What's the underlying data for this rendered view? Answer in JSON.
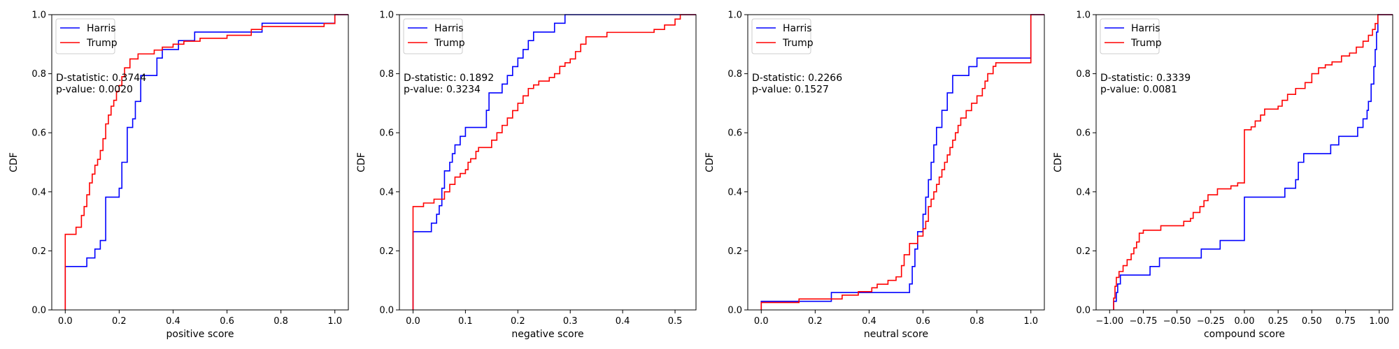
{
  "chart_data": [
    {
      "type": "line",
      "xlabel": "positive score",
      "ylabel": "CDF",
      "xlim": [
        -0.05,
        1.05
      ],
      "ylim": [
        0,
        1
      ],
      "xticks": [
        0.0,
        0.2,
        0.4,
        0.6,
        0.8,
        1.0
      ],
      "xtick_labels": [
        "0.0",
        "0.2",
        "0.4",
        "0.6",
        "0.8",
        "1.0"
      ],
      "yticks": [
        0.0,
        0.2,
        0.4,
        0.6,
        0.8,
        1.0
      ],
      "ytick_labels": [
        "0.0",
        "0.2",
        "0.4",
        "0.6",
        "0.8",
        "1.0"
      ],
      "legend": "top-left",
      "annotation": {
        "lines": [
          "D-statistic: 0.3744",
          "p-value: 0.0020"
        ]
      },
      "series": [
        {
          "name": "Harris",
          "color": "#0000ff",
          "points": [
            [
              0.0,
              0.147
            ],
            [
              0.08,
              0.176
            ],
            [
              0.11,
              0.206
            ],
            [
              0.13,
              0.235
            ],
            [
              0.15,
              0.382
            ],
            [
              0.2,
              0.412
            ],
            [
              0.21,
              0.5
            ],
            [
              0.23,
              0.618
            ],
            [
              0.25,
              0.647
            ],
            [
              0.26,
              0.706
            ],
            [
              0.28,
              0.794
            ],
            [
              0.34,
              0.853
            ],
            [
              0.36,
              0.882
            ],
            [
              0.42,
              0.912
            ],
            [
              0.48,
              0.941
            ],
            [
              0.73,
              0.971
            ],
            [
              1.0,
              1.0
            ]
          ]
        },
        {
          "name": "Trump",
          "color": "#ff0000",
          "points": [
            [
              0.0,
              0.256
            ],
            [
              0.04,
              0.28
            ],
            [
              0.06,
              0.32
            ],
            [
              0.07,
              0.35
            ],
            [
              0.08,
              0.39
            ],
            [
              0.09,
              0.43
            ],
            [
              0.1,
              0.46
            ],
            [
              0.11,
              0.49
            ],
            [
              0.12,
              0.51
            ],
            [
              0.13,
              0.54
            ],
            [
              0.14,
              0.58
            ],
            [
              0.15,
              0.63
            ],
            [
              0.16,
              0.66
            ],
            [
              0.17,
              0.69
            ],
            [
              0.18,
              0.71
            ],
            [
              0.19,
              0.74
            ],
            [
              0.2,
              0.76
            ],
            [
              0.21,
              0.79
            ],
            [
              0.22,
              0.82
            ],
            [
              0.24,
              0.85
            ],
            [
              0.27,
              0.867
            ],
            [
              0.33,
              0.88
            ],
            [
              0.36,
              0.89
            ],
            [
              0.4,
              0.9
            ],
            [
              0.44,
              0.91
            ],
            [
              0.5,
              0.92
            ],
            [
              0.6,
              0.93
            ],
            [
              0.69,
              0.95
            ],
            [
              0.73,
              0.96
            ],
            [
              0.96,
              0.97
            ],
            [
              1.0,
              1.0
            ]
          ]
        }
      ]
    },
    {
      "type": "line",
      "xlabel": "negative score",
      "ylabel": "CDF",
      "xlim": [
        -0.026,
        0.54
      ],
      "ylim": [
        0,
        1
      ],
      "xticks": [
        0.0,
        0.1,
        0.2,
        0.3,
        0.4,
        0.5
      ],
      "xtick_labels": [
        "0.0",
        "0.1",
        "0.2",
        "0.3",
        "0.4",
        "0.5"
      ],
      "yticks": [
        0.0,
        0.2,
        0.4,
        0.6,
        0.8,
        1.0
      ],
      "ytick_labels": [
        "0.0",
        "0.2",
        "0.4",
        "0.6",
        "0.8",
        "1.0"
      ],
      "legend": "top-left",
      "annotation": {
        "lines": [
          "D-statistic: 0.1892",
          "p-value: 0.3234"
        ]
      },
      "series": [
        {
          "name": "Harris",
          "color": "#0000ff",
          "points": [
            [
              0.0,
              0.265
            ],
            [
              0.035,
              0.294
            ],
            [
              0.045,
              0.324
            ],
            [
              0.05,
              0.353
            ],
            [
              0.055,
              0.412
            ],
            [
              0.06,
              0.471
            ],
            [
              0.07,
              0.5
            ],
            [
              0.075,
              0.529
            ],
            [
              0.08,
              0.559
            ],
            [
              0.09,
              0.588
            ],
            [
              0.1,
              0.618
            ],
            [
              0.14,
              0.676
            ],
            [
              0.145,
              0.735
            ],
            [
              0.17,
              0.765
            ],
            [
              0.18,
              0.794
            ],
            [
              0.19,
              0.824
            ],
            [
              0.2,
              0.853
            ],
            [
              0.21,
              0.882
            ],
            [
              0.22,
              0.912
            ],
            [
              0.23,
              0.941
            ],
            [
              0.27,
              0.971
            ],
            [
              0.29,
              1.0
            ]
          ]
        },
        {
          "name": "Trump",
          "color": "#ff0000",
          "points": [
            [
              0.0,
              0.35
            ],
            [
              0.02,
              0.362
            ],
            [
              0.04,
              0.375
            ],
            [
              0.06,
              0.4
            ],
            [
              0.07,
              0.425
            ],
            [
              0.08,
              0.45
            ],
            [
              0.09,
              0.462
            ],
            [
              0.1,
              0.475
            ],
            [
              0.105,
              0.5
            ],
            [
              0.11,
              0.512
            ],
            [
              0.12,
              0.537
            ],
            [
              0.125,
              0.55
            ],
            [
              0.15,
              0.575
            ],
            [
              0.16,
              0.6
            ],
            [
              0.17,
              0.625
            ],
            [
              0.18,
              0.65
            ],
            [
              0.19,
              0.675
            ],
            [
              0.2,
              0.7
            ],
            [
              0.21,
              0.725
            ],
            [
              0.22,
              0.75
            ],
            [
              0.23,
              0.762
            ],
            [
              0.24,
              0.775
            ],
            [
              0.26,
              0.787
            ],
            [
              0.27,
              0.8
            ],
            [
              0.28,
              0.825
            ],
            [
              0.29,
              0.837
            ],
            [
              0.3,
              0.85
            ],
            [
              0.31,
              0.875
            ],
            [
              0.32,
              0.9
            ],
            [
              0.33,
              0.925
            ],
            [
              0.37,
              0.94
            ],
            [
              0.46,
              0.95
            ],
            [
              0.48,
              0.965
            ],
            [
              0.5,
              0.985
            ],
            [
              0.51,
              1.0
            ]
          ]
        }
      ]
    },
    {
      "type": "line",
      "xlabel": "neutral score",
      "ylabel": "CDF",
      "xlim": [
        -0.05,
        1.05
      ],
      "ylim": [
        0,
        1
      ],
      "xticks": [
        0.0,
        0.2,
        0.4,
        0.6,
        0.8,
        1.0
      ],
      "xtick_labels": [
        "0.0",
        "0.2",
        "0.4",
        "0.6",
        "0.8",
        "1.0"
      ],
      "yticks": [
        0.0,
        0.2,
        0.4,
        0.6,
        0.8,
        1.0
      ],
      "ytick_labels": [
        "0.0",
        "0.2",
        "0.4",
        "0.6",
        "0.8",
        "1.0"
      ],
      "legend": "top-left",
      "annotation": {
        "lines": [
          "D-statistic: 0.2266",
          "p-value: 0.1527"
        ]
      },
      "series": [
        {
          "name": "Harris",
          "color": "#0000ff",
          "points": [
            [
              0.0,
              0.029
            ],
            [
              0.26,
              0.059
            ],
            [
              0.55,
              0.088
            ],
            [
              0.56,
              0.147
            ],
            [
              0.57,
              0.206
            ],
            [
              0.58,
              0.265
            ],
            [
              0.6,
              0.324
            ],
            [
              0.61,
              0.382
            ],
            [
              0.62,
              0.441
            ],
            [
              0.63,
              0.5
            ],
            [
              0.64,
              0.559
            ],
            [
              0.65,
              0.618
            ],
            [
              0.67,
              0.676
            ],
            [
              0.69,
              0.735
            ],
            [
              0.71,
              0.794
            ],
            [
              0.77,
              0.824
            ],
            [
              0.8,
              0.853
            ],
            [
              1.0,
              1.0
            ]
          ]
        },
        {
          "name": "Trump",
          "color": "#ff0000",
          "points": [
            [
              0.0,
              0.025
            ],
            [
              0.14,
              0.037
            ],
            [
              0.3,
              0.05
            ],
            [
              0.36,
              0.062
            ],
            [
              0.41,
              0.075
            ],
            [
              0.43,
              0.087
            ],
            [
              0.47,
              0.1
            ],
            [
              0.5,
              0.112
            ],
            [
              0.52,
              0.15
            ],
            [
              0.53,
              0.187
            ],
            [
              0.55,
              0.225
            ],
            [
              0.58,
              0.25
            ],
            [
              0.6,
              0.275
            ],
            [
              0.61,
              0.3
            ],
            [
              0.62,
              0.35
            ],
            [
              0.63,
              0.375
            ],
            [
              0.64,
              0.4
            ],
            [
              0.65,
              0.425
            ],
            [
              0.66,
              0.45
            ],
            [
              0.67,
              0.475
            ],
            [
              0.68,
              0.5
            ],
            [
              0.69,
              0.525
            ],
            [
              0.7,
              0.55
            ],
            [
              0.71,
              0.575
            ],
            [
              0.72,
              0.6
            ],
            [
              0.73,
              0.625
            ],
            [
              0.74,
              0.65
            ],
            [
              0.76,
              0.675
            ],
            [
              0.78,
              0.7
            ],
            [
              0.8,
              0.725
            ],
            [
              0.82,
              0.75
            ],
            [
              0.83,
              0.775
            ],
            [
              0.84,
              0.8
            ],
            [
              0.86,
              0.825
            ],
            [
              0.87,
              0.837
            ],
            [
              1.0,
              1.0
            ]
          ]
        }
      ]
    },
    {
      "type": "line",
      "xlabel": "compound score",
      "ylabel": "CDF",
      "xlim": [
        -1.1,
        1.1
      ],
      "ylim": [
        0,
        1
      ],
      "xticks": [
        -1.0,
        -0.75,
        -0.5,
        -0.25,
        0.0,
        0.25,
        0.5,
        0.75,
        1.0
      ],
      "xtick_labels": [
        "−1.00",
        "−0.75",
        "−0.50",
        "−0.25",
        "0.00",
        "0.25",
        "0.50",
        "0.75",
        "1.00"
      ],
      "yticks": [
        0.0,
        0.2,
        0.4,
        0.6,
        0.8,
        1.0
      ],
      "ytick_labels": [
        "0.0",
        "0.2",
        "0.4",
        "0.6",
        "0.8",
        "1.0"
      ],
      "legend": "top-left",
      "annotation": {
        "lines": [
          "D-statistic: 0.3339",
          "p-value: 0.0081"
        ]
      },
      "series": [
        {
          "name": "Harris",
          "color": "#0000ff",
          "points": [
            [
              -0.97,
              0.029
            ],
            [
              -0.95,
              0.059
            ],
            [
              -0.94,
              0.088
            ],
            [
              -0.92,
              0.118
            ],
            [
              -0.7,
              0.147
            ],
            [
              -0.63,
              0.176
            ],
            [
              -0.32,
              0.206
            ],
            [
              -0.18,
              0.235
            ],
            [
              0.0,
              0.382
            ],
            [
              0.3,
              0.412
            ],
            [
              0.38,
              0.441
            ],
            [
              0.4,
              0.5
            ],
            [
              0.44,
              0.529
            ],
            [
              0.64,
              0.559
            ],
            [
              0.7,
              0.588
            ],
            [
              0.84,
              0.618
            ],
            [
              0.88,
              0.647
            ],
            [
              0.91,
              0.676
            ],
            [
              0.92,
              0.706
            ],
            [
              0.94,
              0.765
            ],
            [
              0.96,
              0.824
            ],
            [
              0.97,
              0.882
            ],
            [
              0.98,
              0.941
            ],
            [
              0.99,
              1.0
            ]
          ]
        },
        {
          "name": "Trump",
          "color": "#ff0000",
          "points": [
            [
              -0.97,
              0.04
            ],
            [
              -0.96,
              0.08
            ],
            [
              -0.95,
              0.11
            ],
            [
              -0.93,
              0.13
            ],
            [
              -0.9,
              0.15
            ],
            [
              -0.87,
              0.17
            ],
            [
              -0.84,
              0.19
            ],
            [
              -0.82,
              0.21
            ],
            [
              -0.8,
              0.23
            ],
            [
              -0.78,
              0.26
            ],
            [
              -0.75,
              0.27
            ],
            [
              -0.62,
              0.285
            ],
            [
              -0.45,
              0.3
            ],
            [
              -0.4,
              0.31
            ],
            [
              -0.38,
              0.33
            ],
            [
              -0.33,
              0.35
            ],
            [
              -0.3,
              0.37
            ],
            [
              -0.27,
              0.39
            ],
            [
              -0.2,
              0.41
            ],
            [
              -0.1,
              0.42
            ],
            [
              -0.05,
              0.43
            ],
            [
              0.0,
              0.61
            ],
            [
              0.05,
              0.62
            ],
            [
              0.08,
              0.64
            ],
            [
              0.12,
              0.66
            ],
            [
              0.15,
              0.68
            ],
            [
              0.25,
              0.69
            ],
            [
              0.28,
              0.71
            ],
            [
              0.32,
              0.73
            ],
            [
              0.38,
              0.75
            ],
            [
              0.45,
              0.77
            ],
            [
              0.5,
              0.8
            ],
            [
              0.55,
              0.82
            ],
            [
              0.6,
              0.83
            ],
            [
              0.65,
              0.84
            ],
            [
              0.72,
              0.86
            ],
            [
              0.78,
              0.87
            ],
            [
              0.83,
              0.89
            ],
            [
              0.88,
              0.91
            ],
            [
              0.92,
              0.93
            ],
            [
              0.95,
              0.95
            ],
            [
              0.97,
              0.97
            ],
            [
              0.99,
              1.0
            ]
          ]
        }
      ]
    }
  ]
}
